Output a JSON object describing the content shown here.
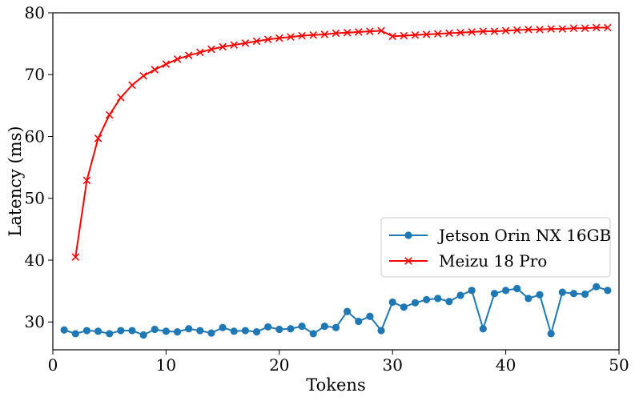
{
  "chart_data": {
    "type": "line",
    "title": "",
    "xlabel": "Tokens",
    "ylabel": "Latency (ms)",
    "xlim": [
      0,
      50
    ],
    "ylim": [
      25.5,
      80
    ],
    "xticks": [
      0,
      10,
      20,
      30,
      40,
      50
    ],
    "yticks": [
      30,
      40,
      50,
      60,
      70,
      80
    ],
    "grid": false,
    "legend_position": "lower-right",
    "series": [
      {
        "name": "Jetson Orin NX 16GB",
        "color": "#1f77b4",
        "marker": "circle",
        "x": [
          1,
          2,
          3,
          4,
          5,
          6,
          7,
          8,
          9,
          10,
          11,
          12,
          13,
          14,
          15,
          16,
          17,
          18,
          19,
          20,
          21,
          22,
          23,
          24,
          25,
          26,
          27,
          28,
          29,
          30,
          31,
          32,
          33,
          34,
          35,
          36,
          37,
          38,
          39,
          40,
          41,
          42,
          43,
          44,
          45,
          46,
          47,
          48,
          49
        ],
        "values": [
          28.7,
          28.1,
          28.6,
          28.5,
          28.1,
          28.6,
          28.6,
          27.9,
          28.8,
          28.5,
          28.4,
          28.9,
          28.6,
          28.2,
          29.1,
          28.5,
          28.6,
          28.4,
          29.2,
          28.8,
          28.9,
          29.3,
          28.1,
          29.3,
          29.1,
          31.7,
          30.1,
          30.9,
          28.6,
          33.2,
          32.4,
          33.1,
          33.6,
          33.8,
          33.3,
          34.3,
          35.1,
          28.9,
          34.6,
          35.1,
          35.4,
          33.8,
          34.4,
          28.1,
          34.8,
          34.6,
          34.5,
          35.7,
          35.1
        ]
      },
      {
        "name": "Meizu 18 Pro",
        "color": "#ff0000",
        "marker": "x",
        "x": [
          2,
          3,
          4,
          5,
          6,
          7,
          8,
          9,
          10,
          11,
          12,
          13,
          14,
          15,
          16,
          17,
          18,
          19,
          20,
          21,
          22,
          23,
          24,
          25,
          26,
          27,
          28,
          29,
          30,
          31,
          32,
          33,
          34,
          35,
          36,
          37,
          38,
          39,
          40,
          41,
          42,
          43,
          44,
          45,
          46,
          47,
          48,
          49
        ],
        "values": [
          40.5,
          52.9,
          59.7,
          63.5,
          66.3,
          68.3,
          69.8,
          70.8,
          71.7,
          72.5,
          73.1,
          73.6,
          74.1,
          74.5,
          74.8,
          75.1,
          75.4,
          75.7,
          75.9,
          76.1,
          76.3,
          76.4,
          76.5,
          76.7,
          76.8,
          76.9,
          77.0,
          77.1,
          76.2,
          76.3,
          76.4,
          76.5,
          76.6,
          76.7,
          76.8,
          76.9,
          77.0,
          77.0,
          77.1,
          77.2,
          77.3,
          77.3,
          77.4,
          77.4,
          77.5,
          77.5,
          77.6,
          77.6
        ]
      }
    ]
  }
}
